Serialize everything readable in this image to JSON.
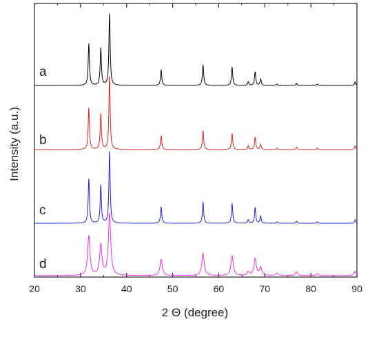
{
  "chart_data": {
    "type": "line",
    "title": "",
    "xlabel": "2 Θ (degree)",
    "ylabel": "Intensity (a.u.)",
    "xlim": [
      20,
      90
    ],
    "x_ticks": [
      20,
      30,
      40,
      50,
      60,
      70,
      80,
      90
    ],
    "y_ticks_shown": false,
    "grid": false,
    "legend": "none; each trace is labeled with a letter at its left end",
    "stacked_offset": true,
    "series": [
      {
        "name": "a",
        "color": "#000000",
        "peaks": [
          {
            "x": 31.8,
            "y": 0.58
          },
          {
            "x": 34.4,
            "y": 0.52
          },
          {
            "x": 36.3,
            "y": 1.0
          },
          {
            "x": 47.5,
            "y": 0.22
          },
          {
            "x": 56.6,
            "y": 0.29
          },
          {
            "x": 62.9,
            "y": 0.26
          },
          {
            "x": 66.4,
            "y": 0.05
          },
          {
            "x": 67.9,
            "y": 0.19
          },
          {
            "x": 69.1,
            "y": 0.09
          },
          {
            "x": 72.6,
            "y": 0.02
          },
          {
            "x": 76.9,
            "y": 0.03
          },
          {
            "x": 81.4,
            "y": 0.02
          },
          {
            "x": 89.6,
            "y": 0.05
          }
        ]
      },
      {
        "name": "b",
        "color": "#e0201a",
        "peaks": [
          {
            "x": 31.8,
            "y": 0.57
          },
          {
            "x": 34.4,
            "y": 0.49
          },
          {
            "x": 36.3,
            "y": 1.0
          },
          {
            "x": 47.5,
            "y": 0.19
          },
          {
            "x": 56.6,
            "y": 0.26
          },
          {
            "x": 62.9,
            "y": 0.22
          },
          {
            "x": 66.4,
            "y": 0.05
          },
          {
            "x": 67.9,
            "y": 0.17
          },
          {
            "x": 69.1,
            "y": 0.07
          },
          {
            "x": 72.6,
            "y": 0.02
          },
          {
            "x": 76.9,
            "y": 0.03
          },
          {
            "x": 81.4,
            "y": 0.02
          },
          {
            "x": 89.6,
            "y": 0.05
          }
        ]
      },
      {
        "name": "c",
        "color": "#1e1ee0",
        "peaks": [
          {
            "x": 31.8,
            "y": 0.62
          },
          {
            "x": 34.4,
            "y": 0.53
          },
          {
            "x": 36.3,
            "y": 1.0
          },
          {
            "x": 47.5,
            "y": 0.23
          },
          {
            "x": 56.6,
            "y": 0.3
          },
          {
            "x": 62.9,
            "y": 0.28
          },
          {
            "x": 66.4,
            "y": 0.05
          },
          {
            "x": 67.9,
            "y": 0.22
          },
          {
            "x": 69.1,
            "y": 0.1
          },
          {
            "x": 72.6,
            "y": 0.02
          },
          {
            "x": 76.9,
            "y": 0.03
          },
          {
            "x": 81.4,
            "y": 0.02
          },
          {
            "x": 89.6,
            "y": 0.05
          }
        ]
      },
      {
        "name": "d",
        "color": "#ee2cee",
        "peaks": [
          {
            "x": 31.8,
            "y": 0.64
          },
          {
            "x": 34.4,
            "y": 0.49
          },
          {
            "x": 36.3,
            "y": 1.0
          },
          {
            "x": 47.5,
            "y": 0.26
          },
          {
            "x": 56.6,
            "y": 0.36
          },
          {
            "x": 62.9,
            "y": 0.32
          },
          {
            "x": 66.4,
            "y": 0.06
          },
          {
            "x": 67.9,
            "y": 0.27
          },
          {
            "x": 69.1,
            "y": 0.13
          },
          {
            "x": 72.6,
            "y": 0.04
          },
          {
            "x": 76.9,
            "y": 0.06
          },
          {
            "x": 81.4,
            "y": 0.03
          },
          {
            "x": 89.6,
            "y": 0.07
          }
        ]
      }
    ]
  }
}
